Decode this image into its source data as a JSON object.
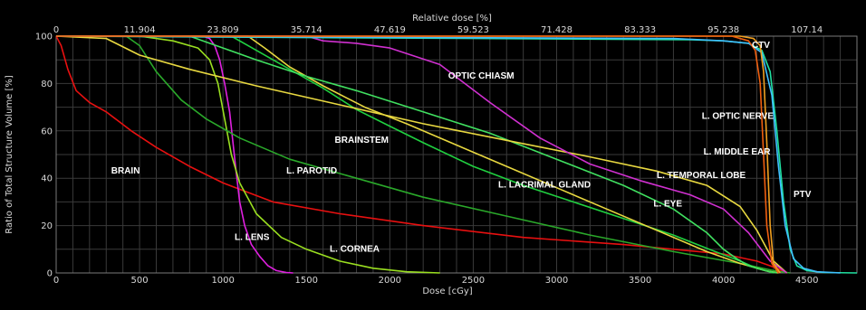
{
  "chart_data": {
    "type": "line",
    "title": "",
    "xlabel": "Dose [cGy]",
    "ylabel": "Ratio of Total Structure Volume [%]",
    "x2label": "Relative dose [%]",
    "xlim": [
      0,
      4800
    ],
    "ylim": [
      0,
      100
    ],
    "x_ticks": [
      "0",
      "500",
      "1000",
      "1500",
      "2000",
      "2500",
      "3000",
      "3500",
      "4000",
      "4500"
    ],
    "y_ticks": [
      "0",
      "20",
      "40",
      "60",
      "80",
      "100"
    ],
    "x2_ticks": [
      "0",
      "11.904",
      "23.809",
      "35.714",
      "47.619",
      "59.523",
      "71.428",
      "83.333",
      "95.238",
      "107.14"
    ],
    "grid": true,
    "background": "#000000",
    "series": [
      {
        "name": "BRAIN",
        "color": "#e81010",
        "label_at": [
          330,
          42
        ],
        "x": [
          0,
          30,
          70,
          120,
          200,
          300,
          450,
          600,
          800,
          1000,
          1300,
          1700,
          2200,
          2800,
          3400,
          4000,
          4200,
          4320,
          4380
        ],
        "y": [
          100,
          96,
          86,
          77,
          72,
          68,
          60,
          53,
          45,
          38,
          30,
          25,
          20,
          15,
          12,
          8,
          5,
          2,
          0
        ]
      },
      {
        "name": "L. LENS",
        "color": "#e020e0",
        "label_at": [
          1070,
          14
        ],
        "x": [
          0,
          880,
          920,
          950,
          980,
          1010,
          1040,
          1060,
          1080,
          1100,
          1130,
          1170,
          1220,
          1270,
          1320,
          1380,
          1420
        ],
        "y": [
          100,
          100,
          99,
          96,
          90,
          80,
          68,
          55,
          42,
          30,
          20,
          12,
          7,
          3,
          1,
          0.2,
          0
        ]
      },
      {
        "name": "L. CORNEA",
        "color": "#9adf20",
        "label_at": [
          1640,
          9
        ],
        "x": [
          0,
          500,
          700,
          850,
          920,
          970,
          1010,
          1050,
          1100,
          1200,
          1350,
          1500,
          1700,
          1900,
          2100,
          2300
        ],
        "y": [
          100,
          100,
          98,
          95,
          90,
          80,
          65,
          50,
          38,
          25,
          15,
          10,
          5,
          2,
          0.5,
          0
        ]
      },
      {
        "name": "L. PAROTID",
        "color": "#2aa82a",
        "label_at": [
          1380,
          42
        ],
        "x": [
          0,
          420,
          500,
          600,
          750,
          900,
          1100,
          1400,
          1800,
          2200,
          2700,
          3200,
          3700,
          4100,
          4300,
          4400
        ],
        "y": [
          100,
          100,
          96,
          85,
          73,
          65,
          57,
          48,
          40,
          32,
          24,
          16,
          9,
          4,
          1,
          0
        ]
      },
      {
        "name": "BRAINSTEM",
        "color": "#20d040",
        "label_at": [
          1670,
          55
        ],
        "x": [
          0,
          1050,
          1200,
          1400,
          1600,
          1800,
          2000,
          2200,
          2500,
          2800,
          3100,
          3400,
          3700,
          3950,
          4100,
          4200,
          4300
        ],
        "y": [
          100,
          100,
          94,
          86,
          78,
          69,
          62,
          55,
          45,
          37,
          30,
          23,
          16,
          9,
          5,
          2,
          0
        ]
      },
      {
        "name": "L. LACRIMAL GLAND",
        "color": "#e8d840",
        "label_at": [
          2650,
          36
        ],
        "x": [
          0,
          1150,
          1250,
          1400,
          1600,
          1850,
          2100,
          2400,
          2700,
          3000,
          3300,
          3600,
          3900,
          4100,
          4250,
          4330
        ],
        "y": [
          100,
          100,
          95,
          87,
          79,
          70,
          63,
          54,
          45,
          36,
          27,
          18,
          9,
          4,
          1,
          0
        ]
      },
      {
        "name": "L. EYE",
        "color": "#40e060",
        "label_at": [
          3580,
          28
        ],
        "x": [
          0,
          800,
          1000,
          1200,
          1500,
          1800,
          2200,
          2600,
          3000,
          3400,
          3700,
          3900,
          4000,
          4080,
          4150,
          4250,
          4320
        ],
        "y": [
          100,
          100,
          95,
          90,
          83,
          77,
          68,
          59,
          48,
          37,
          27,
          17,
          10,
          6,
          3,
          1,
          0
        ]
      },
      {
        "name": "L. TEMPORAL LOBE",
        "color": "#e8d840",
        "label_at": [
          3600,
          40
        ],
        "x": [
          0,
          300,
          500,
          800,
          1200,
          1700,
          2200,
          2700,
          3200,
          3600,
          3900,
          4100,
          4200,
          4300,
          4380
        ],
        "y": [
          100,
          99,
          92,
          86,
          79,
          71,
          63,
          56,
          49,
          43,
          37,
          28,
          18,
          5,
          0
        ]
      },
      {
        "name": "OPTIC CHIASM",
        "color": "#d030d0",
        "label_at": [
          2350,
          82
        ],
        "x": [
          0,
          1500,
          1600,
          1800,
          2000,
          2300,
          2600,
          2900,
          3200,
          3500,
          3800,
          4000,
          4150,
          4280,
          4380
        ],
        "y": [
          100,
          100,
          98,
          97,
          95,
          88,
          72,
          57,
          46,
          39,
          33,
          27,
          17,
          5,
          0
        ]
      },
      {
        "name": "L. MIDDLE EAR",
        "color": "#20e0a0",
        "label_at": [
          3880,
          50
        ],
        "x": [
          0,
          3800,
          4000,
          4150,
          4230,
          4280,
          4320,
          4360,
          4400,
          4440,
          4500,
          4600,
          4800
        ],
        "y": [
          100,
          98.5,
          98,
          97,
          94,
          85,
          60,
          30,
          10,
          3,
          1,
          0.2,
          0
        ]
      },
      {
        "name": "L. OPTIC NERVE",
        "color": "#40c0ff",
        "label_at": [
          3870,
          65
        ],
        "x": [
          0,
          3700,
          4000,
          4150,
          4230,
          4290,
          4330,
          4370,
          4420,
          4480,
          4560,
          4700
        ],
        "y": [
          100,
          99,
          98,
          97,
          93,
          75,
          45,
          20,
          6,
          2,
          0.5,
          0
        ]
      },
      {
        "name": "CTV",
        "color": "#f0a020",
        "label_at": [
          4170,
          95
        ],
        "x": [
          0,
          4100,
          4180,
          4220,
          4240,
          4260,
          4280,
          4300,
          4340
        ],
        "y": [
          100,
          100,
          99,
          96,
          85,
          55,
          20,
          4,
          0
        ]
      },
      {
        "name": "PTV",
        "color": "#f06010",
        "label_at": [
          4420,
          32
        ],
        "x": [
          0,
          4050,
          4150,
          4190,
          4220,
          4240,
          4260,
          4290,
          4330
        ],
        "y": [
          100,
          100,
          98,
          94,
          80,
          50,
          20,
          4,
          0
        ]
      }
    ]
  }
}
